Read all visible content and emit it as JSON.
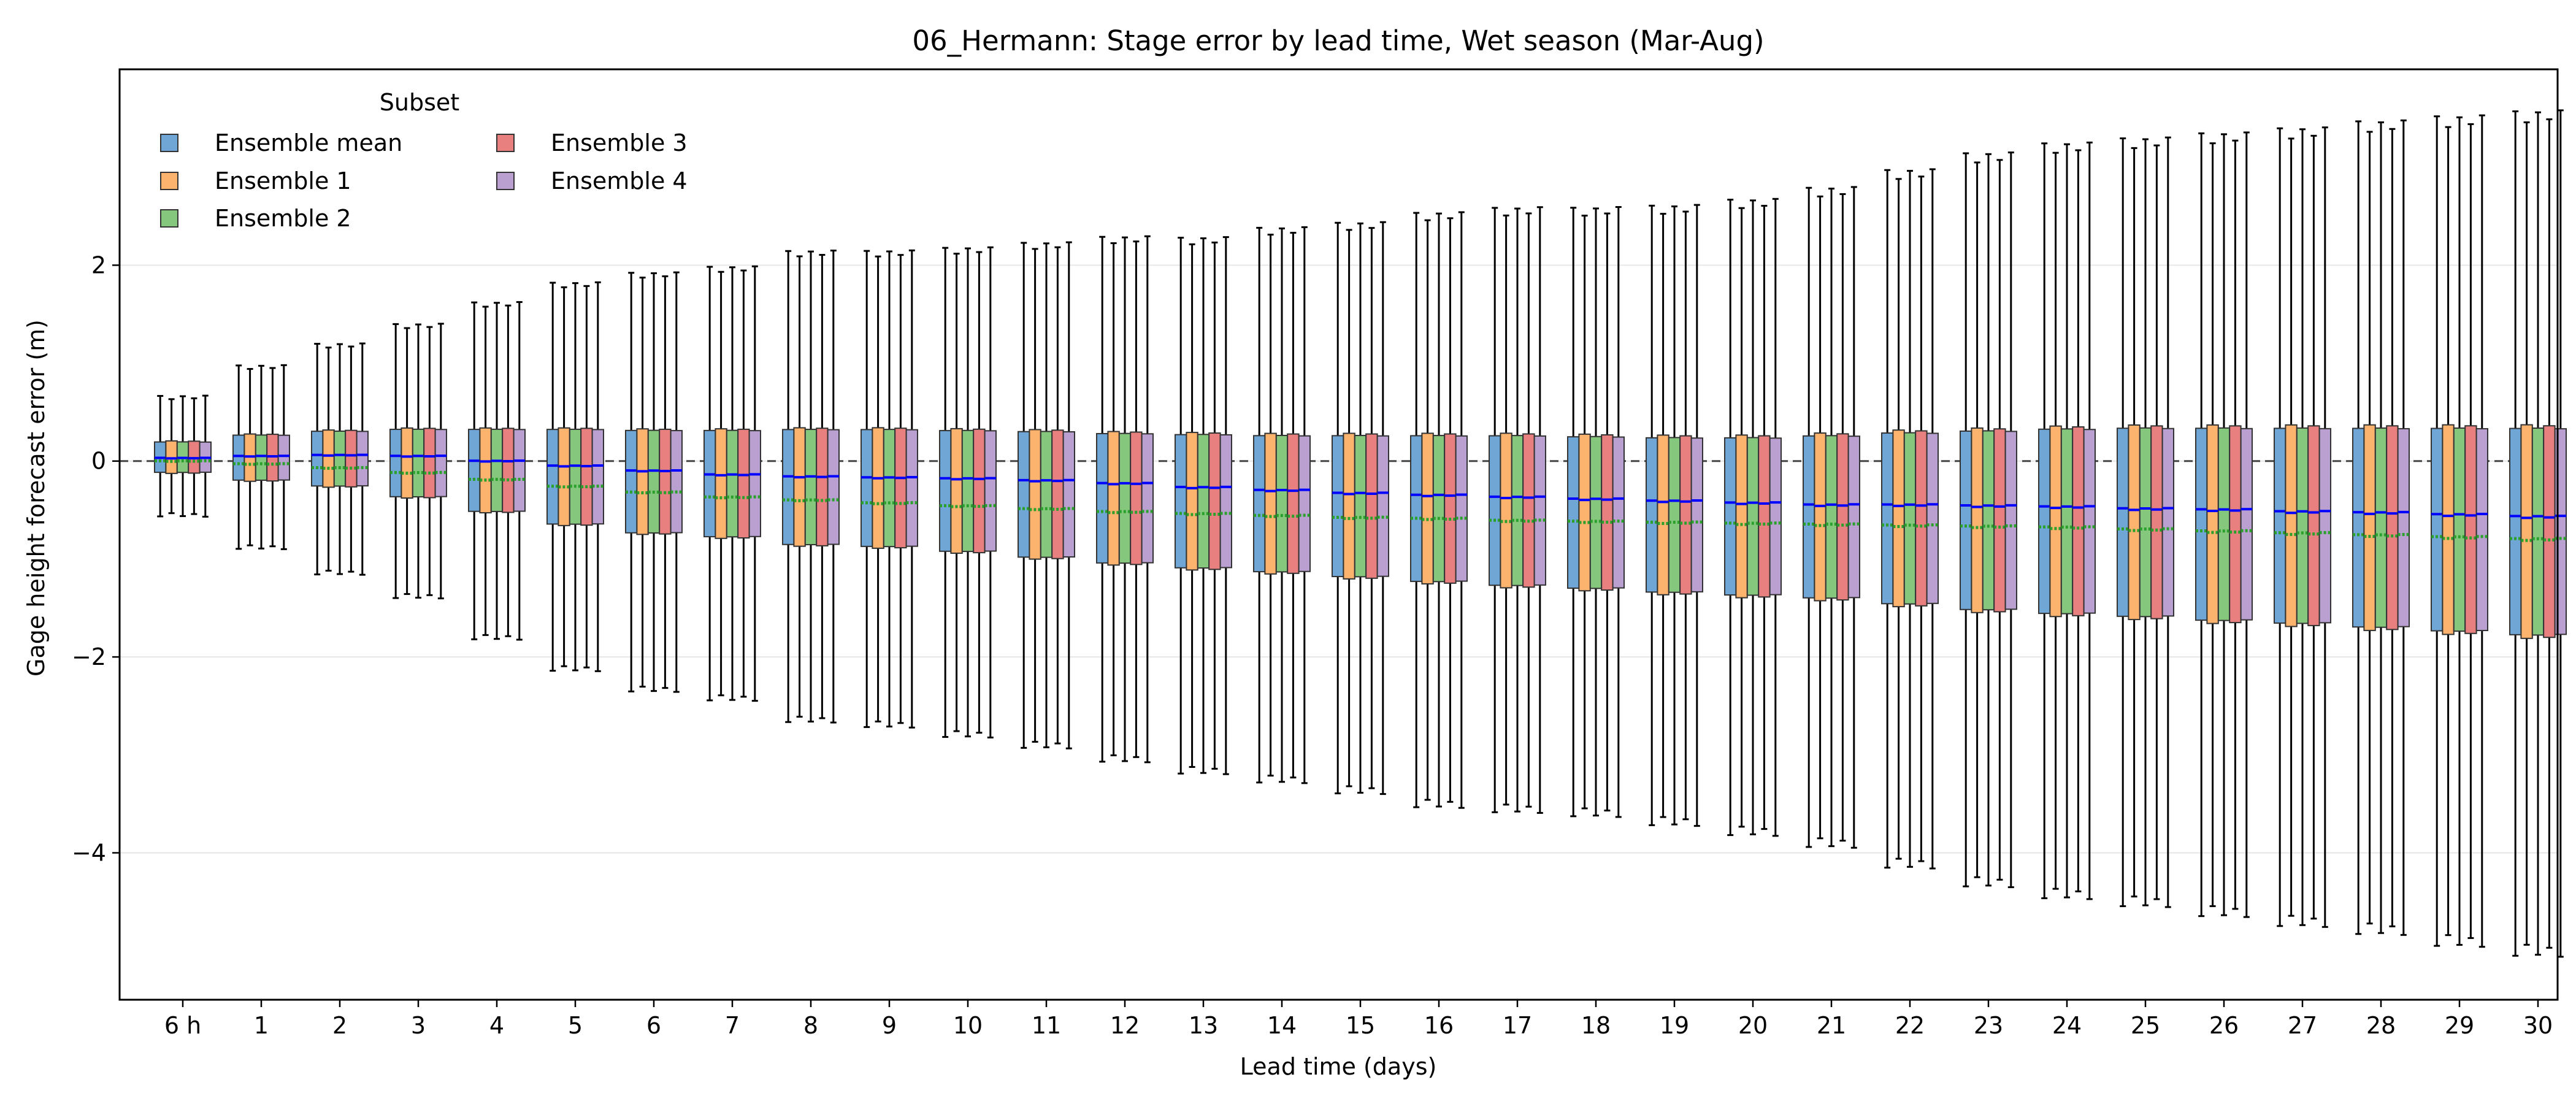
{
  "chart_data": {
    "type": "box",
    "title": "06_Hermann: Stage error by lead time, Wet season (Mar-Aug)",
    "xlabel": "Lead time (days)",
    "ylabel": "Gage height forecast error (m)",
    "ylim": [
      -5.5,
      4.0
    ],
    "yticks": [
      {
        "value": -4,
        "label": "−4"
      },
      {
        "value": -2,
        "label": "−2"
      },
      {
        "value": 0,
        "label": "0"
      },
      {
        "value": 2,
        "label": "2"
      }
    ],
    "grid": "horizontal",
    "zero_line": "dashed",
    "legend": {
      "title": "Subset",
      "placement": "top-left",
      "columns": 2
    },
    "categories": [
      "6 h",
      "1",
      "2",
      "3",
      "4",
      "5",
      "6",
      "7",
      "8",
      "9",
      "10",
      "11",
      "12",
      "13",
      "14",
      "15",
      "16",
      "17",
      "18",
      "19",
      "20",
      "21",
      "22",
      "23",
      "24",
      "25",
      "26",
      "27",
      "28",
      "29",
      "30"
    ],
    "series": [
      {
        "name": "Ensemble mean",
        "color": "#6fa6d6"
      },
      {
        "name": "Ensemble 1",
        "color": "#fcb36d"
      },
      {
        "name": "Ensemble 2",
        "color": "#85c77d"
      },
      {
        "name": "Ensemble 3",
        "color": "#e8807f"
      },
      {
        "name": "Ensemble 4",
        "color": "#b9a0d0"
      }
    ],
    "median_color": "#0000ff",
    "mean_color": "#2ca02c",
    "boxes": {
      "whisker_low": [
        -0.55,
        -0.88,
        -1.14,
        -1.38,
        -1.8,
        -2.12,
        -2.33,
        -2.42,
        -2.64,
        -2.69,
        -2.79,
        -2.9,
        -3.04,
        -3.16,
        -3.25,
        -3.36,
        -3.5,
        -3.55,
        -3.59,
        -3.68,
        -3.78,
        -3.9,
        -4.11,
        -4.3,
        -4.42,
        -4.5,
        -4.6,
        -4.7,
        -4.78,
        -4.9,
        -5.0
      ],
      "q1": [
        -0.12,
        -0.2,
        -0.26,
        -0.37,
        -0.52,
        -0.65,
        -0.74,
        -0.78,
        -0.86,
        -0.88,
        -0.93,
        -0.99,
        -1.05,
        -1.1,
        -1.14,
        -1.19,
        -1.24,
        -1.28,
        -1.31,
        -1.35,
        -1.38,
        -1.41,
        -1.47,
        -1.53,
        -1.57,
        -1.6,
        -1.64,
        -1.67,
        -1.71,
        -1.75,
        -1.79
      ],
      "median": [
        0.03,
        0.05,
        0.06,
        0.05,
        0.0,
        -0.05,
        -0.1,
        -0.14,
        -0.16,
        -0.17,
        -0.18,
        -0.2,
        -0.23,
        -0.27,
        -0.3,
        -0.33,
        -0.35,
        -0.37,
        -0.39,
        -0.41,
        -0.43,
        -0.45,
        -0.45,
        -0.46,
        -0.47,
        -0.49,
        -0.5,
        -0.52,
        -0.53,
        -0.55,
        -0.57
      ],
      "mean": [
        0.0,
        -0.03,
        -0.07,
        -0.12,
        -0.19,
        -0.26,
        -0.32,
        -0.37,
        -0.4,
        -0.43,
        -0.46,
        -0.49,
        -0.52,
        -0.54,
        -0.56,
        -0.58,
        -0.59,
        -0.61,
        -0.62,
        -0.63,
        -0.64,
        -0.65,
        -0.66,
        -0.67,
        -0.68,
        -0.7,
        -0.72,
        -0.74,
        -0.76,
        -0.78,
        -0.8
      ],
      "q3": [
        0.2,
        0.27,
        0.31,
        0.33,
        0.33,
        0.33,
        0.32,
        0.32,
        0.33,
        0.33,
        0.32,
        0.31,
        0.29,
        0.28,
        0.27,
        0.27,
        0.27,
        0.27,
        0.26,
        0.25,
        0.25,
        0.27,
        0.3,
        0.32,
        0.34,
        0.35,
        0.35,
        0.35,
        0.35,
        0.35,
        0.35
      ],
      "whisker_high": [
        0.65,
        0.96,
        1.18,
        1.38,
        1.6,
        1.8,
        1.9,
        1.96,
        2.12,
        2.12,
        2.15,
        2.2,
        2.26,
        2.25,
        2.35,
        2.4,
        2.5,
        2.55,
        2.55,
        2.57,
        2.63,
        2.75,
        2.93,
        3.1,
        3.2,
        3.25,
        3.3,
        3.35,
        3.42,
        3.47,
        3.52
      ]
    }
  }
}
